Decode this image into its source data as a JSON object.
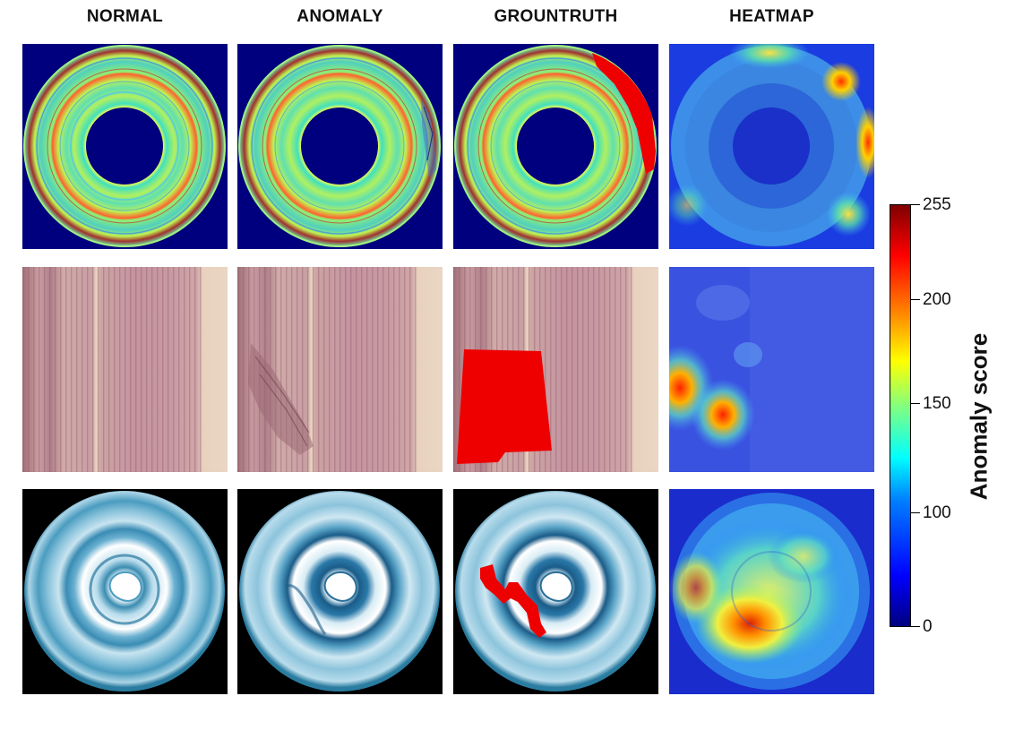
{
  "columns": {
    "normal": "NORMAL",
    "anomaly": "ANOMALY",
    "groundtruth": "GROUNTRUTH",
    "heatmap": "HEATMAP"
  },
  "colorbar": {
    "label": "Anomaly score",
    "ticks": [
      "255",
      "200",
      "150",
      "100",
      "0"
    ],
    "colormap": "jet"
  },
  "rows": [
    {
      "sample": "disc-rings",
      "background": "#00007f"
    },
    {
      "sample": "wood-strip",
      "background": "#e8d2c4"
    },
    {
      "sample": "log-cross-section",
      "background": "#000000"
    }
  ],
  "colors": {
    "mask": "#ee0000",
    "heat_low": "#2040e0",
    "heat_high": "#ff2000"
  }
}
